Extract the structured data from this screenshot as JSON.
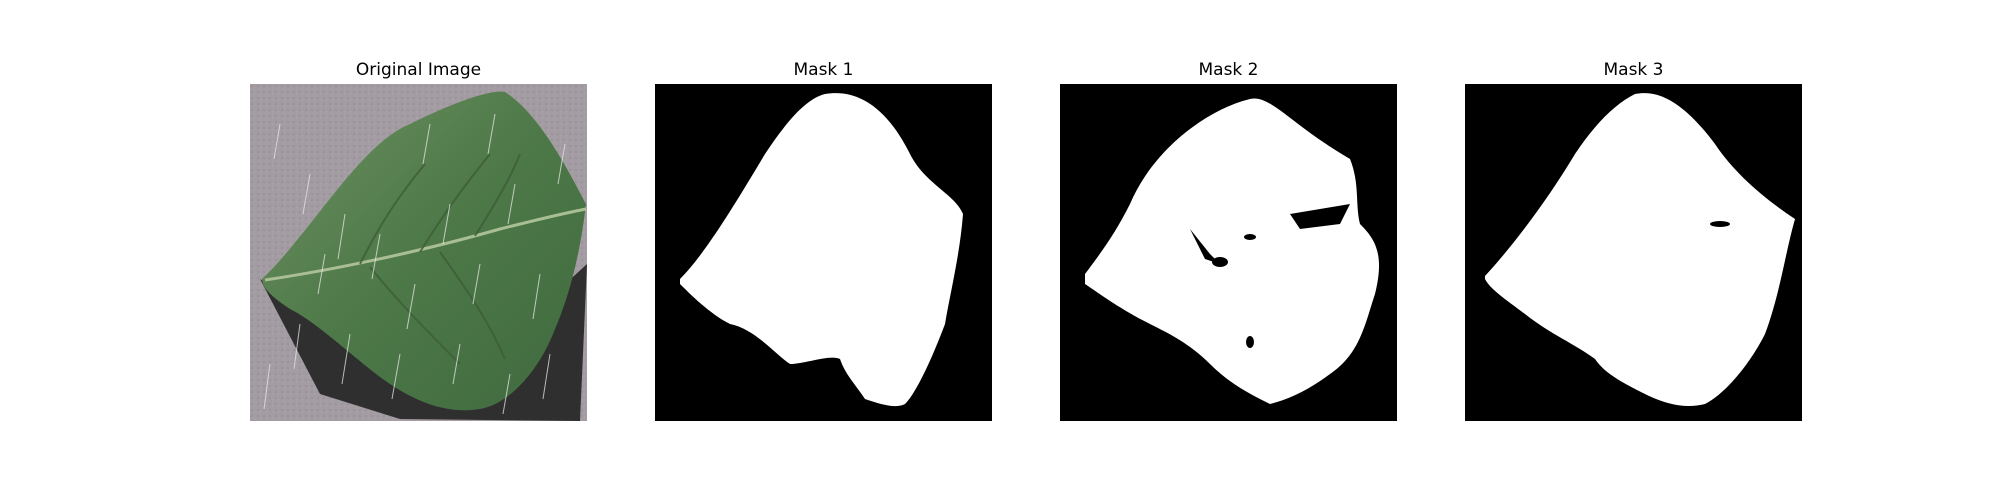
{
  "figure": {
    "panels": [
      {
        "title": "Original Image",
        "content": "leaf-photo"
      },
      {
        "title": "Mask 1",
        "content": "binary-mask"
      },
      {
        "title": "Mask 2",
        "content": "binary-mask"
      },
      {
        "title": "Mask 3",
        "content": "binary-mask"
      }
    ],
    "colors": {
      "mask_foreground": "#ffffff",
      "mask_background": "#000000",
      "photo_background": "#a19a9f",
      "leaf_green": "#4f7a4a"
    }
  }
}
